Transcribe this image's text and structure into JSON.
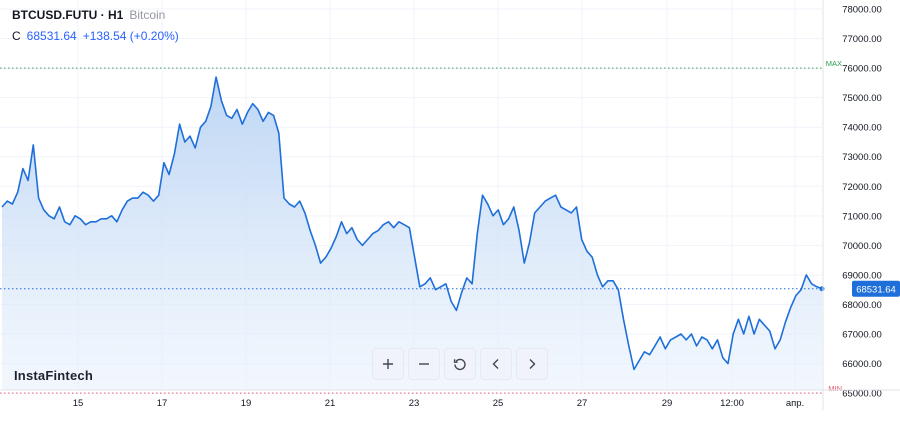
{
  "header": {
    "symbol": "BTCUSD.FUTU · H1",
    "description": "Bitcoin",
    "close_label": "C",
    "close_value": "68531.64",
    "change": "+138.54 (+0.20%)"
  },
  "watermark": "InstaFintech",
  "toolbar": [
    "zoom-in-icon",
    "zoom-out-icon",
    "reset-icon",
    "scroll-left-icon",
    "scroll-right-icon"
  ],
  "colors": {
    "line": "#1e6fd9",
    "max": "#2e9d55",
    "min": "#e25b73",
    "price_badge": "#1e6fd9"
  },
  "chart_data": {
    "type": "area",
    "title": "BTCUSD.FUTU · H1",
    "ylim": [
      64700,
      78000
    ],
    "y_ticks": [
      "65000.00",
      "66000.00",
      "67000.00",
      "68000.00",
      "69000.00",
      "70000.00",
      "71000.00",
      "72000.00",
      "73000.00",
      "74000.00",
      "75000.00",
      "76000.00",
      "77000.00",
      "78000.00"
    ],
    "x_ticks": [
      "15",
      "17",
      "19",
      "21",
      "23",
      "25",
      "27",
      "29",
      "12:00",
      "апр."
    ],
    "last_price": "68531.64",
    "max_label": "MAX",
    "min_label": "MIN",
    "max_level": 76000,
    "min_level": 65000,
    "series": [
      {
        "values": [
          71300,
          71500,
          71400,
          71800,
          72600,
          72200,
          73400,
          71600,
          71200,
          71000,
          70900,
          71300,
          70800,
          70700,
          71000,
          70900,
          70700,
          70800,
          70800,
          70900,
          70900,
          71000,
          70800,
          71200,
          71500,
          71600,
          71600,
          71800,
          71700,
          71500,
          71700,
          72800,
          72400,
          73100,
          74100,
          73500,
          73700,
          73300,
          74000,
          74200,
          74700,
          75700,
          74900,
          74400,
          74300,
          74600,
          74100,
          74500,
          74800,
          74600,
          74200,
          74500,
          74400,
          73800,
          71600,
          71400,
          71300,
          71500,
          71100,
          70500,
          70000,
          69400,
          69600,
          69900,
          70300,
          70800,
          70400,
          70600,
          70200,
          70000,
          70200,
          70400,
          70500,
          70700,
          70800,
          70600,
          70800,
          70700,
          70600,
          69600,
          68600,
          68700,
          68900,
          68500,
          68600,
          68700,
          68100,
          67800,
          68400,
          68900,
          68700,
          70400,
          71700,
          71400,
          71000,
          71200,
          70700,
          70900,
          71300,
          70500,
          69400,
          70100,
          71100,
          71300,
          71500,
          71600,
          71700,
          71300,
          71200,
          71100,
          71300,
          70200,
          69800,
          69600,
          69000,
          68600,
          68800,
          68800,
          68500,
          67500,
          66600,
          65800,
          66100,
          66400,
          66300,
          66600,
          66900,
          66500,
          66800,
          66900,
          67000,
          66800,
          67000,
          66600,
          66900,
          66800,
          66500,
          66800,
          66200,
          66000,
          67000,
          67500,
          67000,
          67600,
          67000,
          67500,
          67300,
          67100,
          66500,
          66800,
          67400,
          67900,
          68300,
          68500,
          69000,
          68700,
          68600,
          68531.64
        ]
      }
    ]
  }
}
